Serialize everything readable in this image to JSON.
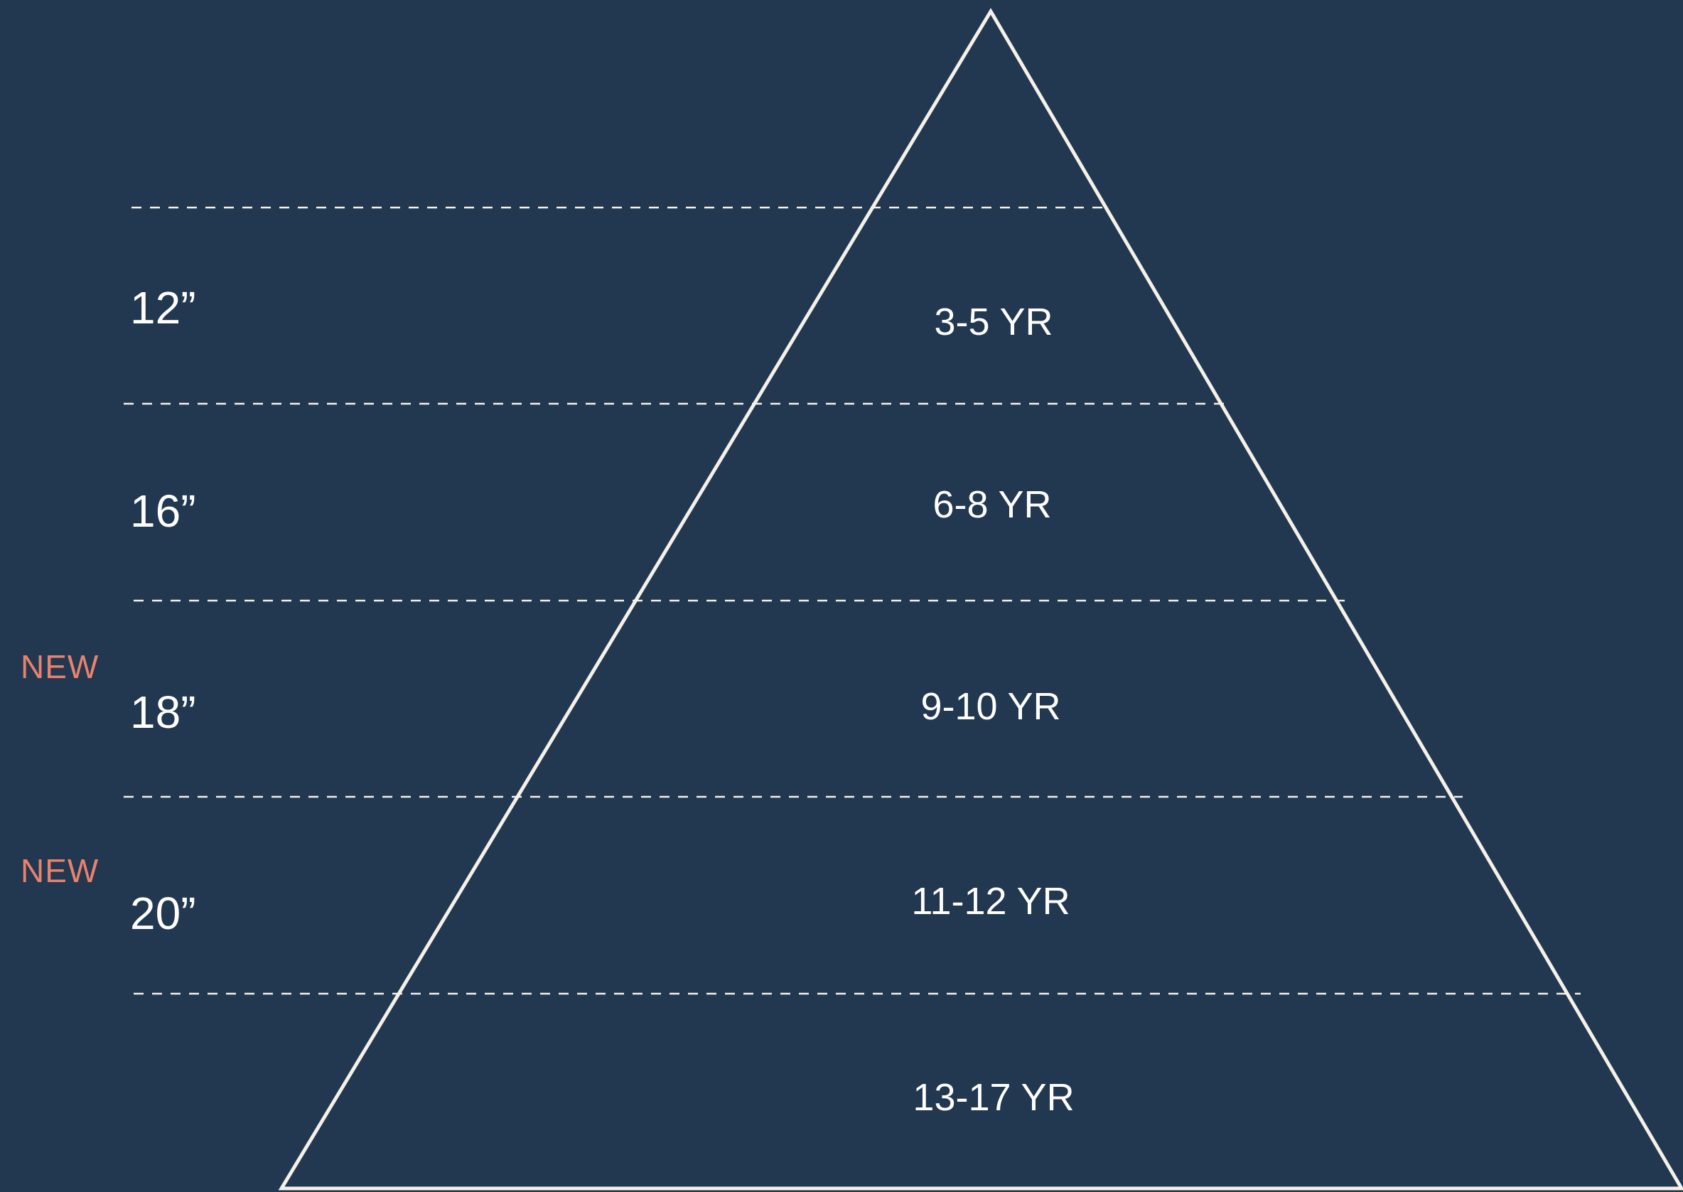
{
  "colors": {
    "background": "#223750",
    "outline": "#f4f1e8",
    "text": "#ffffff",
    "new_badge": "#e8826c"
  },
  "sizes": [
    {
      "label": "12”",
      "new": ""
    },
    {
      "label": "16”",
      "new": ""
    },
    {
      "label": "18”",
      "new": "NEW"
    },
    {
      "label": "20”",
      "new": "NEW"
    }
  ],
  "age_groups": [
    {
      "label": "3-5 YR"
    },
    {
      "label": "6-8 YR"
    },
    {
      "label": "9-10 YR"
    },
    {
      "label": "11-12 YR"
    },
    {
      "label": "13-17 YR"
    }
  ]
}
